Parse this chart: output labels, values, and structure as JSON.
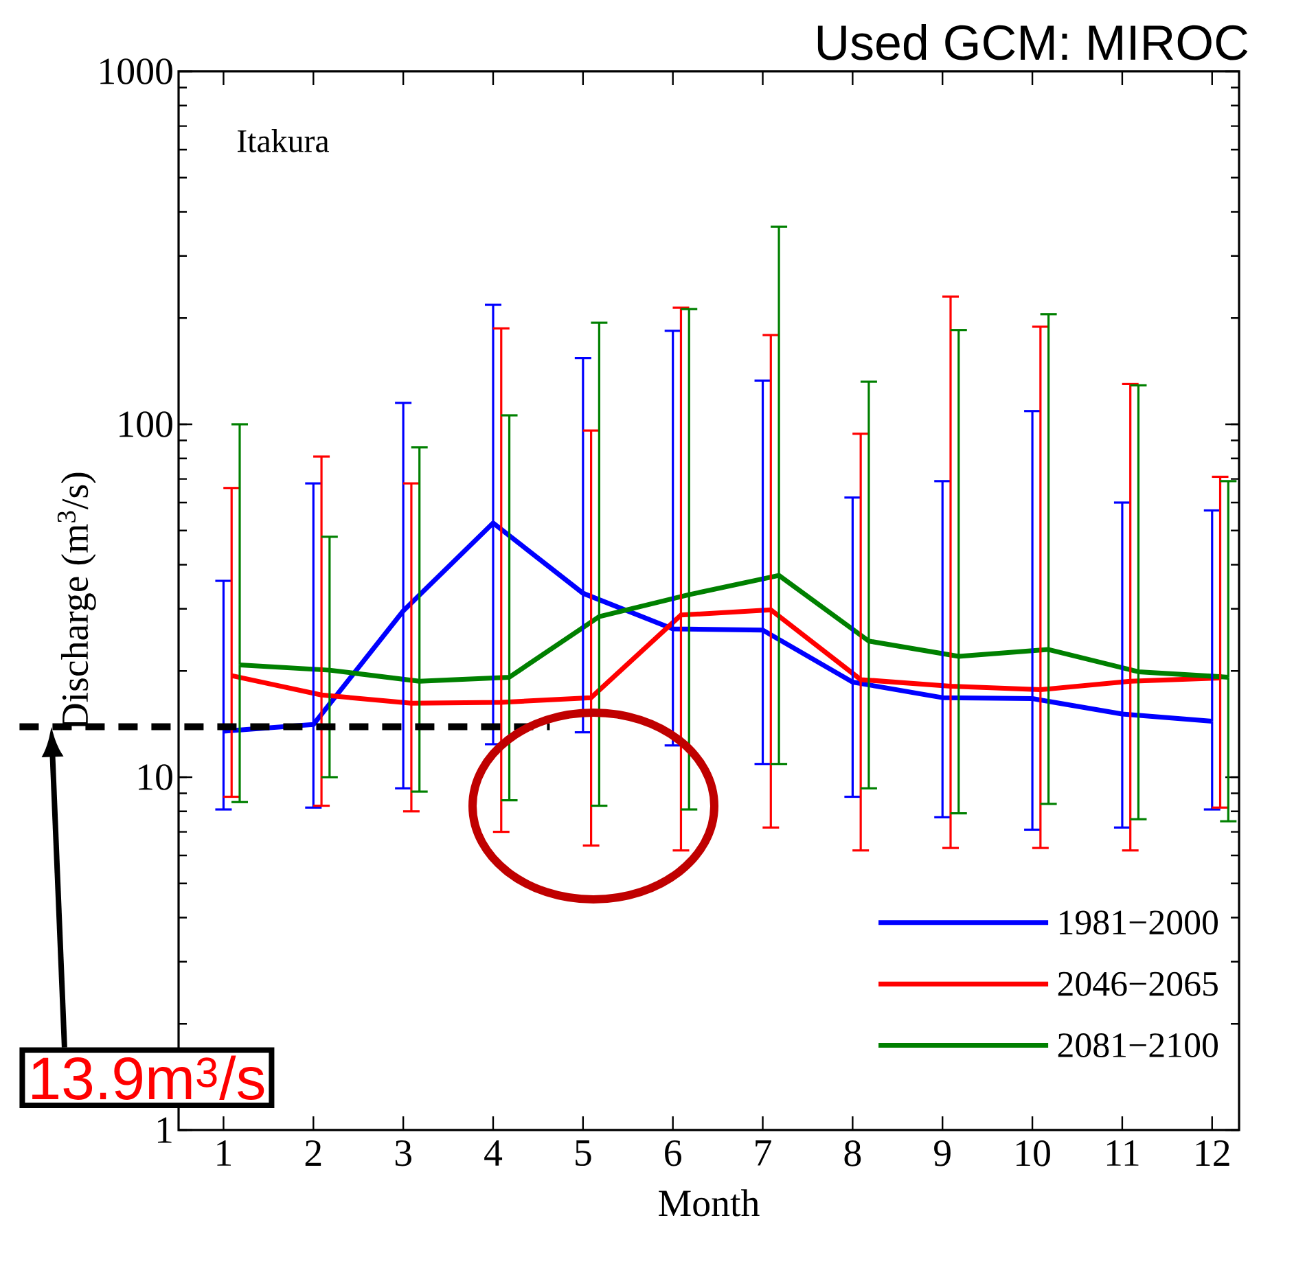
{
  "chart_data": {
    "type": "line",
    "title": "Used GCM:  MIROC",
    "xlabel": "Month",
    "ylabel": "Discharge (m$^{3}$/s)",
    "annotations": [
      "Itakura",
      "13.9m$^{3}$/s"
    ],
    "x": [
      1,
      2,
      3,
      4,
      5,
      6,
      7,
      8,
      9,
      10,
      11,
      12
    ],
    "series": [
      {
        "name": "1981−2000",
        "color": "#0000ff",
        "values": [
          13.5,
          14.1,
          29.6,
          52.5,
          33.2,
          26.3,
          26.1,
          18.6,
          16.8,
          16.7,
          15.1,
          14.4
        ],
        "errors": [
          [
            8.1,
            36
          ],
          [
            8.2,
            68
          ],
          [
            9.3,
            115
          ],
          [
            12.4,
            218
          ],
          [
            13.4,
            154
          ],
          [
            12.3,
            184
          ],
          [
            10.9,
            133
          ],
          [
            8.8,
            62
          ],
          [
            7.7,
            69
          ],
          [
            7.1,
            109
          ],
          [
            7.2,
            60
          ],
          [
            8.1,
            57
          ]
        ]
      },
      {
        "name": "2046−2065",
        "color": "#ff0000",
        "x": [
          1.09,
          2.09,
          3.09,
          4.09,
          5.09,
          6.09,
          7.09,
          8.09,
          9.09,
          10.09,
          11.09,
          12.09
        ],
        "values": [
          19.4,
          17.1,
          16.2,
          16.3,
          16.8,
          28.8,
          29.8,
          18.9,
          18.1,
          17.7,
          18.7,
          19.1
        ],
        "errors": [
          [
            8.8,
            66
          ],
          [
            8.3,
            81
          ],
          [
            8.0,
            68
          ],
          [
            7.0,
            187
          ],
          [
            6.4,
            96
          ],
          [
            6.2,
            214
          ],
          [
            7.2,
            179
          ],
          [
            6.2,
            94
          ],
          [
            6.3,
            230
          ],
          [
            6.3,
            189
          ],
          [
            6.2,
            130
          ],
          [
            8.2,
            71
          ]
        ]
      },
      {
        "name": "2081−2100",
        "color": "#008000",
        "x": [
          1.18,
          2.18,
          3.18,
          4.18,
          5.18,
          6.18,
          7.18,
          8.18,
          9.18,
          10.18,
          11.18,
          12.18
        ],
        "values": [
          20.8,
          20.1,
          18.7,
          19.2,
          28.5,
          32.9,
          37.3,
          24.3,
          22.0,
          23.0,
          19.9,
          19.2
        ],
        "errors": [
          [
            8.5,
            100
          ],
          [
            10.0,
            48
          ],
          [
            9.1,
            86
          ],
          [
            8.6,
            106
          ],
          [
            8.3,
            194
          ],
          [
            8.1,
            212
          ],
          [
            10.9,
            363
          ],
          [
            9.3,
            132
          ],
          [
            7.9,
            185
          ],
          [
            8.4,
            205
          ],
          [
            7.6,
            129
          ],
          [
            7.5,
            69
          ]
        ]
      }
    ],
    "ref_lines": [
      {
        "axis": "y",
        "value": 13.9,
        "color": "#000000",
        "line_style": "dashed"
      }
    ],
    "xlim": [
      0.5,
      12.3
    ],
    "ylim": [
      1,
      1000
    ],
    "xticks": [
      1,
      2,
      3,
      4,
      5,
      6,
      7,
      8,
      9,
      10,
      11,
      12
    ],
    "yticks": [
      1,
      10,
      100,
      1000
    ],
    "log": "y",
    "grid": false,
    "legend": "bottom right",
    "marker": "none"
  }
}
